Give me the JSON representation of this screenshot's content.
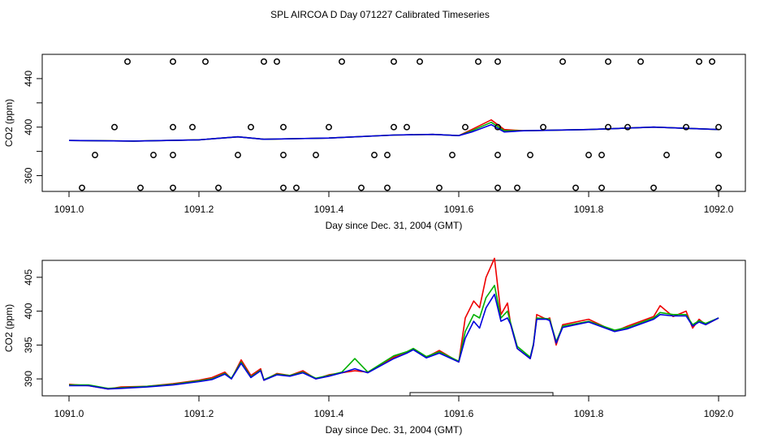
{
  "title": "SPL AIRCOA D  Day 071227  Calibrated Timeseries",
  "colors": {
    "red": "#ee0000",
    "green": "#00b000",
    "blue": "#0000dd",
    "black": "#000000"
  },
  "chart_data": [
    {
      "type": "line+scatter",
      "xlabel": "Day since Dec. 31, 2004 (GMT)",
      "ylabel": "CO2 (ppm)",
      "xlim": [
        1091.0,
        1092.0
      ],
      "ylim": [
        347,
        460
      ],
      "x_ticks": [
        1091.0,
        1091.2,
        1091.4,
        1091.6,
        1091.8,
        1092.0
      ],
      "x_tick_labels": [
        "1091.0",
        "1091.2",
        "1091.4",
        "1091.6",
        "1091.8",
        "1092.0"
      ],
      "y_ticks": [
        360,
        380,
        400,
        420,
        440
      ],
      "y_tick_labels": [
        "360",
        "",
        "400",
        "",
        "440"
      ],
      "scatter_x": [
        1091.09,
        1091.16,
        1091.21,
        1091.3,
        1091.32,
        1091.42,
        1091.5,
        1091.54,
        1091.63,
        1091.66,
        1091.76,
        1091.83,
        1091.88,
        1091.97,
        1091.99,
        1091.07,
        1091.16,
        1091.19,
        1091.28,
        1091.33,
        1091.4,
        1091.5,
        1091.52,
        1091.61,
        1091.66,
        1091.73,
        1091.83,
        1091.86,
        1091.95,
        1092.0,
        1091.04,
        1091.13,
        1091.16,
        1091.26,
        1091.33,
        1091.38,
        1091.47,
        1091.49,
        1091.59,
        1091.66,
        1091.71,
        1091.8,
        1091.82,
        1091.92,
        1092.0,
        1091.02,
        1091.11,
        1091.16,
        1091.23,
        1091.33,
        1091.35,
        1091.45,
        1091.49,
        1091.57,
        1091.66,
        1091.69,
        1091.78,
        1091.82,
        1091.9,
        1092.0
      ],
      "scatter_y": [
        454,
        454,
        454,
        454,
        454,
        454,
        454,
        454,
        454,
        454,
        454,
        454,
        454,
        454,
        454,
        400,
        400,
        400,
        400,
        400,
        400,
        400,
        400,
        400,
        400,
        400,
        400,
        400,
        400,
        400,
        377,
        377,
        377,
        377,
        377,
        377,
        377,
        377,
        377,
        377,
        377,
        377,
        377,
        377,
        377,
        350,
        350,
        350,
        350,
        350,
        350,
        350,
        350,
        350,
        350,
        350,
        350,
        350,
        350,
        350
      ],
      "series": [
        {
          "name": "red",
          "color": "#ee0000",
          "x": [
            1091.0,
            1091.1,
            1091.2,
            1091.26,
            1091.3,
            1091.4,
            1091.5,
            1091.56,
            1091.6,
            1091.62,
            1091.65,
            1091.67,
            1091.7,
            1091.8,
            1091.9,
            1092.0
          ],
          "y": [
            389,
            388.5,
            389.5,
            392,
            390,
            391,
            393.5,
            394,
            393,
            398,
            406,
            398,
            397,
            398,
            400,
            398
          ]
        },
        {
          "name": "green",
          "color": "#00b000",
          "x": [
            1091.0,
            1091.1,
            1091.2,
            1091.26,
            1091.3,
            1091.4,
            1091.5,
            1091.56,
            1091.6,
            1091.62,
            1091.65,
            1091.67,
            1091.7,
            1091.8,
            1091.9,
            1092.0
          ],
          "y": [
            389,
            388.5,
            389.5,
            392,
            390,
            391,
            393.5,
            394,
            393,
            397,
            404,
            397,
            397,
            398,
            400,
            398
          ]
        },
        {
          "name": "blue",
          "color": "#0000dd",
          "x": [
            1091.0,
            1091.1,
            1091.2,
            1091.26,
            1091.3,
            1091.4,
            1091.5,
            1091.56,
            1091.6,
            1091.62,
            1091.65,
            1091.67,
            1091.7,
            1091.8,
            1091.9,
            1092.0
          ],
          "y": [
            389,
            388.5,
            389.5,
            392,
            390,
            391,
            393.5,
            394,
            393,
            396,
            402,
            396,
            397,
            398,
            400,
            398
          ]
        }
      ]
    },
    {
      "type": "line",
      "xlabel": "Day since Dec. 31, 2004 (GMT)",
      "ylabel": "CO2 (ppm)",
      "xlim": [
        1091.0,
        1092.0
      ],
      "ylim": [
        387.5,
        407.5
      ],
      "x_ticks": [
        1091.0,
        1091.2,
        1091.4,
        1091.6,
        1091.8,
        1092.0
      ],
      "x_tick_labels": [
        "1091.0",
        "1091.2",
        "1091.4",
        "1091.6",
        "1091.8",
        "1092.0"
      ],
      "y_ticks": [
        390,
        395,
        400,
        405
      ],
      "y_tick_labels": [
        "390",
        "395",
        "400",
        "405"
      ],
      "bracket": {
        "x_start": 1091.525,
        "x_end": 1091.745
      },
      "series": [
        {
          "name": "red",
          "color": "#ee0000",
          "x": [
            1091.0,
            1091.03,
            1091.06,
            1091.08,
            1091.12,
            1091.16,
            1091.2,
            1091.22,
            1091.24,
            1091.25,
            1091.265,
            1091.28,
            1091.295,
            1091.3,
            1091.32,
            1091.34,
            1091.36,
            1091.38,
            1091.4,
            1091.42,
            1091.44,
            1091.46,
            1091.5,
            1091.52,
            1091.53,
            1091.55,
            1091.57,
            1091.6,
            1091.61,
            1091.623,
            1091.632,
            1091.642,
            1091.655,
            1091.665,
            1091.675,
            1091.68,
            1091.69,
            1091.71,
            1091.715,
            1091.72,
            1091.735,
            1091.74,
            1091.75,
            1091.76,
            1091.8,
            1091.84,
            1091.86,
            1091.9,
            1091.91,
            1091.93,
            1091.95,
            1091.96,
            1091.97,
            1091.98,
            1092.0
          ],
          "y": [
            389.2,
            389.0,
            388.5,
            388.8,
            388.9,
            389.3,
            389.8,
            390.2,
            391.0,
            390.0,
            392.8,
            390.5,
            391.5,
            389.8,
            390.8,
            390.5,
            391.2,
            390.0,
            390.6,
            390.9,
            391.2,
            391.0,
            393.2,
            394.0,
            394.4,
            393.2,
            394.2,
            392.5,
            399.0,
            401.5,
            400.5,
            405.0,
            407.8,
            399.5,
            401.2,
            398.0,
            394.5,
            393.0,
            395.0,
            399.5,
            398.8,
            399.0,
            395.0,
            398.0,
            398.8,
            397.0,
            397.8,
            399.2,
            400.8,
            399.2,
            400.0,
            397.5,
            398.8,
            398.0,
            399.0
          ]
        },
        {
          "name": "green",
          "color": "#00b000",
          "x": [
            1091.0,
            1091.03,
            1091.06,
            1091.08,
            1091.12,
            1091.16,
            1091.2,
            1091.22,
            1091.24,
            1091.25,
            1091.265,
            1091.28,
            1091.295,
            1091.3,
            1091.32,
            1091.34,
            1091.36,
            1091.38,
            1091.4,
            1091.42,
            1091.44,
            1091.46,
            1091.5,
            1091.52,
            1091.53,
            1091.55,
            1091.57,
            1091.6,
            1091.61,
            1091.623,
            1091.632,
            1091.642,
            1091.655,
            1091.665,
            1091.675,
            1091.68,
            1091.69,
            1091.71,
            1091.715,
            1091.72,
            1091.735,
            1091.74,
            1091.75,
            1091.76,
            1091.8,
            1091.84,
            1091.86,
            1091.9,
            1091.91,
            1091.93,
            1091.95,
            1091.96,
            1091.97,
            1091.98,
            1092.0
          ],
          "y": [
            389.1,
            389.1,
            388.6,
            388.7,
            388.9,
            389.2,
            389.7,
            390.0,
            390.8,
            390.1,
            392.5,
            390.3,
            391.3,
            389.9,
            390.7,
            390.5,
            391.0,
            390.1,
            390.5,
            391.0,
            393.0,
            391.0,
            393.4,
            394.0,
            394.5,
            393.3,
            394.0,
            392.6,
            397.0,
            399.5,
            399.0,
            402.0,
            403.8,
            399.0,
            400.0,
            398.2,
            394.8,
            393.2,
            395.2,
            399.0,
            398.9,
            398.8,
            395.5,
            397.8,
            398.5,
            397.2,
            397.6,
            399.0,
            399.8,
            399.5,
            399.5,
            398.0,
            398.6,
            398.2,
            399.0
          ]
        },
        {
          "name": "blue",
          "color": "#0000dd",
          "x": [
            1091.0,
            1091.03,
            1091.06,
            1091.08,
            1091.12,
            1091.16,
            1091.2,
            1091.22,
            1091.24,
            1091.25,
            1091.265,
            1091.28,
            1091.295,
            1091.3,
            1091.32,
            1091.34,
            1091.36,
            1091.38,
            1091.4,
            1091.42,
            1091.44,
            1091.46,
            1091.5,
            1091.52,
            1091.53,
            1091.55,
            1091.57,
            1091.6,
            1091.61,
            1091.623,
            1091.632,
            1091.642,
            1091.655,
            1091.665,
            1091.675,
            1091.68,
            1091.69,
            1091.71,
            1091.715,
            1091.72,
            1091.735,
            1091.74,
            1091.75,
            1091.76,
            1091.8,
            1091.84,
            1091.86,
            1091.9,
            1091.91,
            1091.93,
            1091.95,
            1091.96,
            1091.97,
            1091.98,
            1092.0
          ],
          "y": [
            389.0,
            389.0,
            388.5,
            388.6,
            388.8,
            389.1,
            389.6,
            389.9,
            390.7,
            390.0,
            392.3,
            390.2,
            391.2,
            389.8,
            390.6,
            390.4,
            390.9,
            390.0,
            390.4,
            390.9,
            391.5,
            390.9,
            393.0,
            393.8,
            394.3,
            393.1,
            393.8,
            392.5,
            396.0,
            398.5,
            397.5,
            400.5,
            402.5,
            398.5,
            399.0,
            398.0,
            394.5,
            393.0,
            395.0,
            398.8,
            398.8,
            398.6,
            395.3,
            397.6,
            398.4,
            397.0,
            397.4,
            398.8,
            399.5,
            399.3,
            399.3,
            397.8,
            398.4,
            398.0,
            399.0
          ]
        }
      ]
    }
  ]
}
